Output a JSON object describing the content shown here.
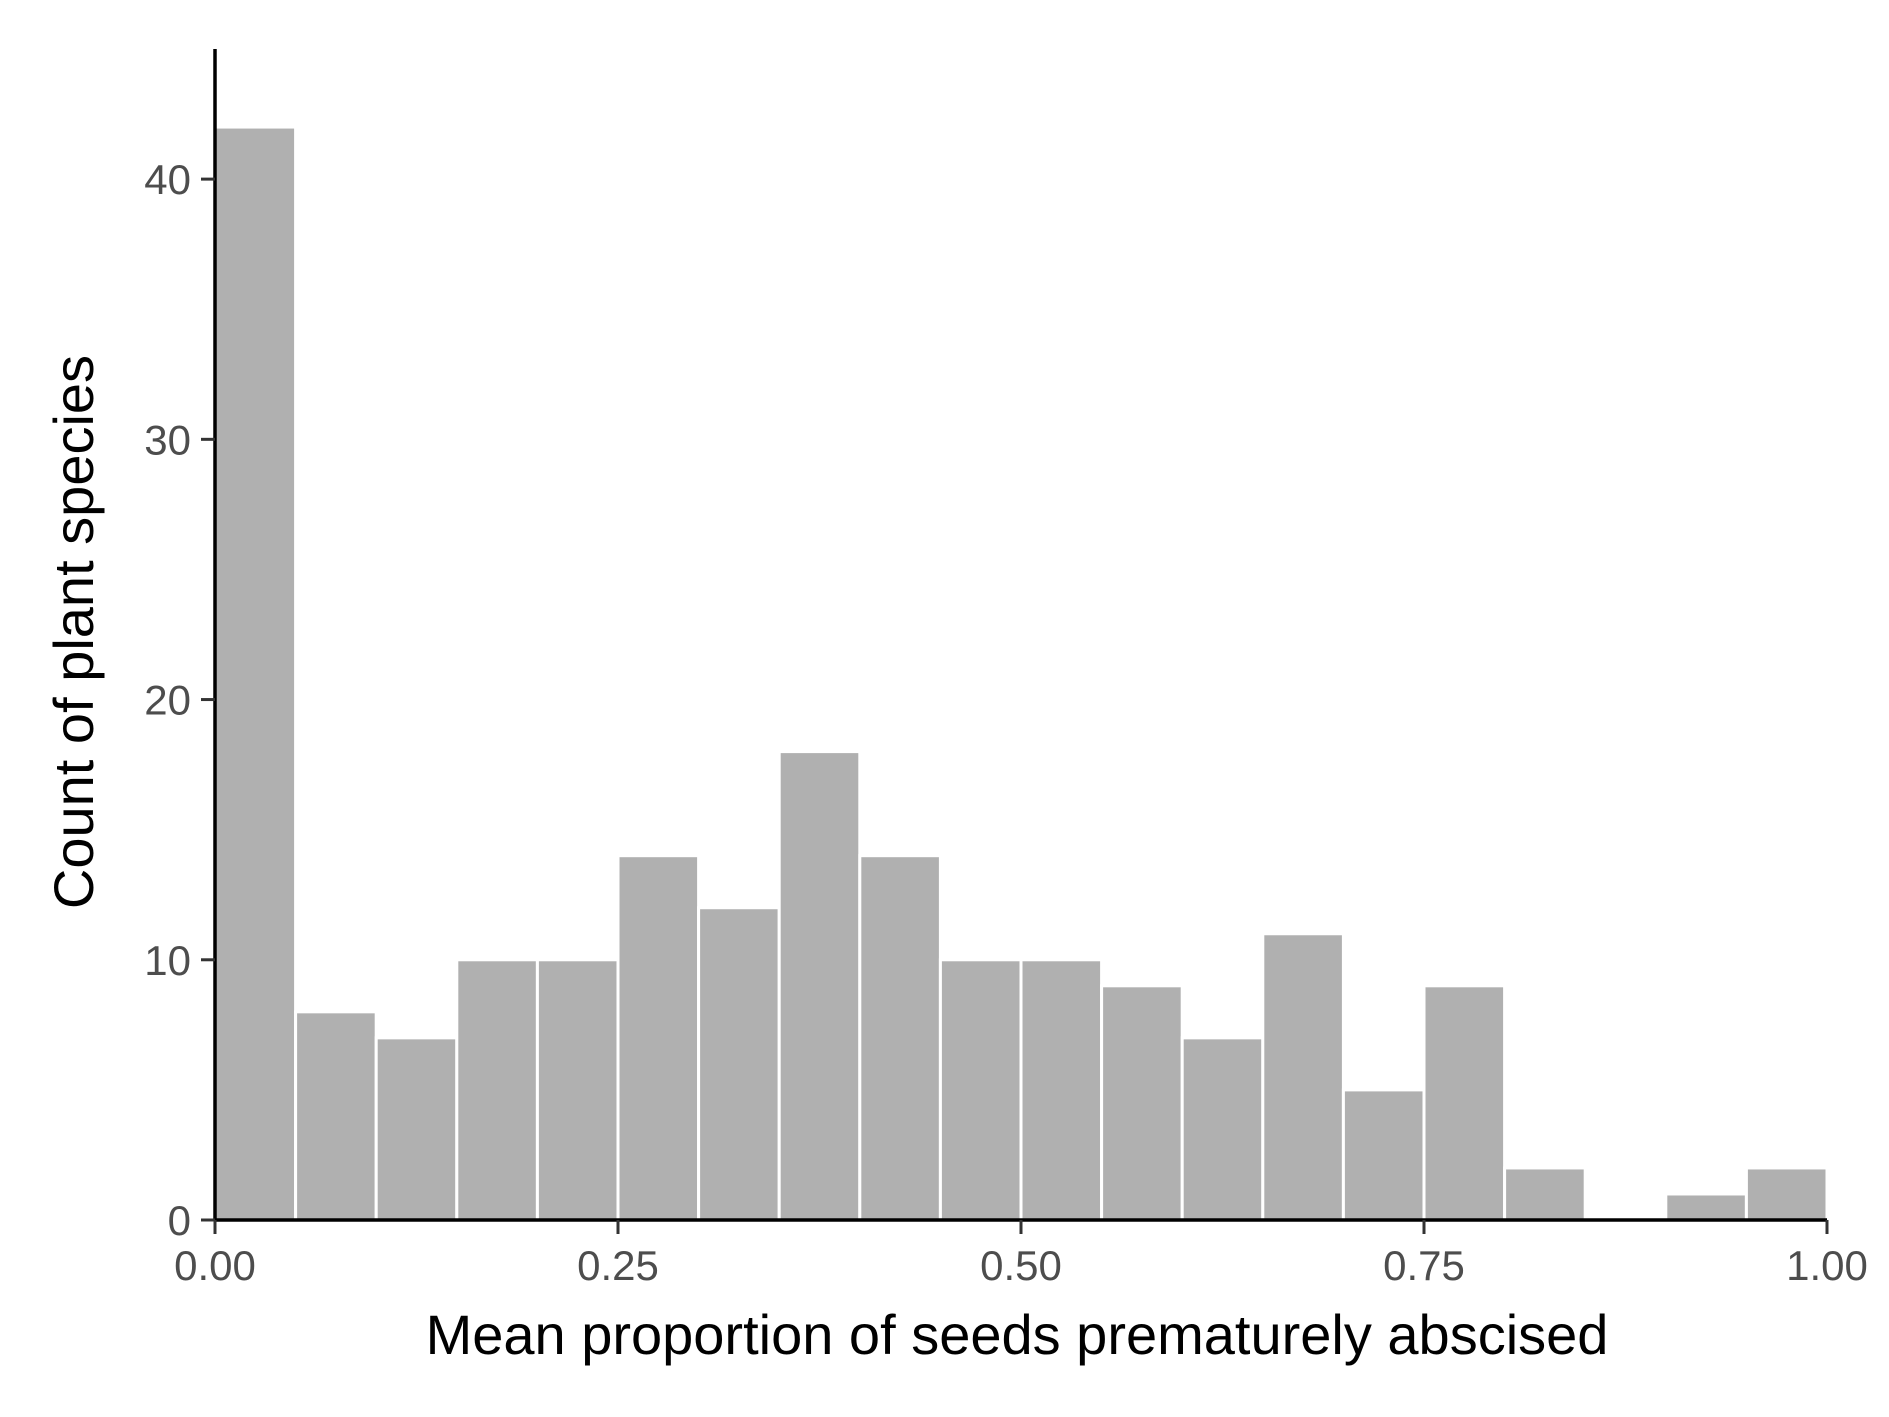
{
  "chart_data": {
    "type": "bar",
    "histogram": true,
    "title": "",
    "xlabel": "Mean proportion of seeds prematurely abscised",
    "ylabel": "Count of plant species",
    "xlim": [
      0,
      1
    ],
    "ylim": [
      0,
      45
    ],
    "bin_width": 0.05,
    "bins": [
      {
        "x0": 0.0,
        "x1": 0.05,
        "count": 42
      },
      {
        "x0": 0.05,
        "x1": 0.1,
        "count": 8
      },
      {
        "x0": 0.1,
        "x1": 0.15,
        "count": 7
      },
      {
        "x0": 0.15,
        "x1": 0.2,
        "count": 10
      },
      {
        "x0": 0.2,
        "x1": 0.25,
        "count": 10
      },
      {
        "x0": 0.25,
        "x1": 0.3,
        "count": 14
      },
      {
        "x0": 0.3,
        "x1": 0.35,
        "count": 12
      },
      {
        "x0": 0.35,
        "x1": 0.4,
        "count": 18
      },
      {
        "x0": 0.4,
        "x1": 0.45,
        "count": 14
      },
      {
        "x0": 0.45,
        "x1": 0.5,
        "count": 10
      },
      {
        "x0": 0.5,
        "x1": 0.55,
        "count": 10
      },
      {
        "x0": 0.55,
        "x1": 0.6,
        "count": 9
      },
      {
        "x0": 0.6,
        "x1": 0.65,
        "count": 7
      },
      {
        "x0": 0.65,
        "x1": 0.7,
        "count": 11
      },
      {
        "x0": 0.7,
        "x1": 0.75,
        "count": 5
      },
      {
        "x0": 0.75,
        "x1": 0.8,
        "count": 9
      },
      {
        "x0": 0.8,
        "x1": 0.85,
        "count": 2
      },
      {
        "x0": 0.85,
        "x1": 0.9,
        "count": 0
      },
      {
        "x0": 0.9,
        "x1": 0.95,
        "count": 1
      },
      {
        "x0": 0.95,
        "x1": 1.0,
        "count": 2
      }
    ],
    "x_ticks": [
      {
        "value": 0.0,
        "label": "0.00"
      },
      {
        "value": 0.25,
        "label": "0.25"
      },
      {
        "value": 0.5,
        "label": "0.50"
      },
      {
        "value": 0.75,
        "label": "0.75"
      },
      {
        "value": 1.0,
        "label": "1.00"
      }
    ],
    "y_ticks": [
      {
        "value": 0,
        "label": "0"
      },
      {
        "value": 10,
        "label": "10"
      },
      {
        "value": 20,
        "label": "20"
      },
      {
        "value": 30,
        "label": "30"
      },
      {
        "value": 40,
        "label": "40"
      }
    ],
    "grid": false,
    "legend": "none",
    "colors": {
      "bar_fill": "#b0b0b0",
      "bar_outline": "#ffffff",
      "axis": "#000000",
      "tick_text": "#4d4d4d"
    }
  }
}
